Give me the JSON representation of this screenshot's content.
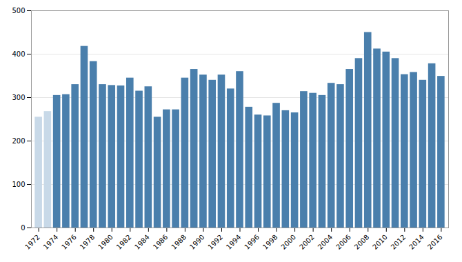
{
  "chart_data": {
    "type": "bar",
    "x": [
      1972,
      1973,
      1974,
      1975,
      1976,
      1977,
      1978,
      1979,
      1980,
      1981,
      1982,
      1983,
      1984,
      1985,
      1986,
      1987,
      1988,
      1989,
      1990,
      1991,
      1992,
      1993,
      1994,
      1995,
      1996,
      1997,
      1998,
      1999,
      2000,
      2001,
      2002,
      2003,
      2004,
      2005,
      2006,
      2007,
      2008,
      2009,
      2010,
      2011,
      2012,
      2013,
      2014,
      2015,
      2016
    ],
    "values": [
      255,
      268,
      305,
      307,
      330,
      418,
      383,
      330,
      328,
      327,
      345,
      315,
      325,
      255,
      272,
      272,
      345,
      365,
      352,
      340,
      352,
      320,
      360,
      278,
      260,
      258,
      287,
      270,
      265,
      314,
      310,
      305,
      333,
      330,
      365,
      390,
      450,
      412,
      405,
      390,
      353,
      358,
      340,
      378,
      349
    ],
    "colors": [
      "#c8d9e8",
      "#c8d9e8",
      "#4a7fac",
      "#4a7fac",
      "#4a7fac",
      "#4a7fac",
      "#4a7fac",
      "#4a7fac",
      "#4a7fac",
      "#4a7fac",
      "#4a7fac",
      "#4a7fac",
      "#4a7fac",
      "#4a7fac",
      "#4a7fac",
      "#4a7fac",
      "#4a7fac",
      "#4a7fac",
      "#4a7fac",
      "#4a7fac",
      "#4a7fac",
      "#4a7fac",
      "#4a7fac",
      "#4a7fac",
      "#4a7fac",
      "#4a7fac",
      "#4a7fac",
      "#4a7fac",
      "#4a7fac",
      "#4a7fac",
      "#4a7fac",
      "#4a7fac",
      "#4a7fac",
      "#4a7fac",
      "#4a7fac",
      "#4a7fac",
      "#4a7fac",
      "#4a7fac",
      "#4a7fac",
      "#4a7fac",
      "#4a7fac",
      "#4a7fac",
      "#4a7fac",
      "#4a7fac",
      "#4a7fac"
    ],
    "xlim": [
      1971.2,
      2016.8
    ],
    "xticks": [
      1972,
      1974,
      1976,
      1978,
      1980,
      1982,
      1984,
      1986,
      1988,
      1990,
      1992,
      1994,
      1996,
      1998,
      2000,
      2002,
      2004,
      2006,
      2008,
      2010,
      2012,
      2014,
      2016
    ],
    "ylim": [
      0,
      500
    ],
    "yticks": [
      0,
      100,
      200,
      300,
      400,
      500
    ],
    "grid": true
  }
}
